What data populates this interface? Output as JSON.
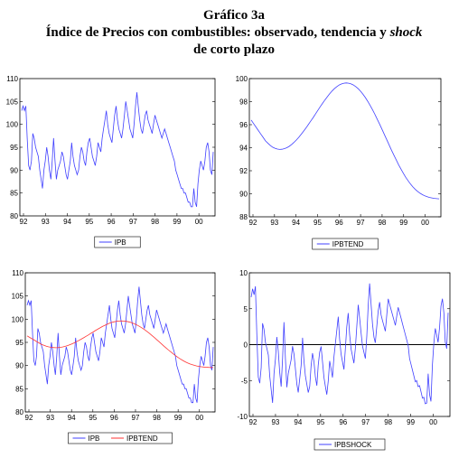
{
  "header": {
    "line1": "Gráfico 3a",
    "line2_main": "Índice de Precios con combustibles: observado, tendencia y ",
    "line2_italic": "shock",
    "line3": "de corto plazo"
  },
  "colors": {
    "ipb": "#4040ff",
    "trend": "#ff3333",
    "zero": "#000000"
  },
  "chart_data": [
    {
      "type": "line",
      "x_ticks": [
        "92",
        "93",
        "94",
        "95",
        "96",
        "97",
        "98",
        "99",
        "00"
      ],
      "ylim": [
        80,
        110
      ],
      "y_ticks": [
        80,
        85,
        90,
        95,
        100,
        105,
        110
      ],
      "grid": false,
      "legend_position": "bottom-center",
      "series": [
        {
          "name": "IPB",
          "color": "#4040ff",
          "values": [
            103,
            104,
            103,
            104,
            97,
            91,
            90,
            92,
            98,
            97,
            95,
            94,
            93,
            90,
            88,
            86,
            90,
            92,
            95,
            93,
            90,
            88,
            92,
            97,
            92,
            88,
            90,
            91,
            92,
            94,
            93,
            91,
            89,
            88,
            90,
            92,
            96,
            93,
            91,
            90,
            89,
            90,
            93,
            95,
            94,
            92,
            91,
            94,
            96,
            97,
            95,
            93,
            92,
            91,
            93,
            96,
            95,
            94,
            97,
            99,
            101,
            103,
            100,
            98,
            97,
            96,
            99,
            102,
            104,
            101,
            99,
            98,
            97,
            99,
            102,
            105,
            103,
            101,
            99,
            98,
            97,
            100,
            104,
            107,
            104,
            101,
            99,
            98,
            100,
            102,
            103,
            101,
            100,
            99,
            98,
            100,
            102,
            101,
            100,
            99,
            98,
            97,
            98,
            99,
            98,
            97,
            96,
            95,
            94,
            93,
            92,
            90,
            89,
            88,
            87,
            86,
            86,
            85,
            85,
            84,
            83,
            83,
            82,
            82,
            86,
            83,
            82,
            87,
            90,
            92,
            91,
            90,
            92,
            95,
            96,
            94,
            90,
            89,
            94
          ]
        }
      ]
    },
    {
      "type": "line",
      "x_ticks": [
        "92",
        "93",
        "94",
        "95",
        "96",
        "97",
        "98",
        "99",
        "00"
      ],
      "ylim": [
        88,
        100
      ],
      "y_ticks": [
        88,
        90,
        92,
        94,
        96,
        98,
        100
      ],
      "grid": false,
      "legend_position": "bottom-center",
      "series": [
        {
          "name": "IPBTEND",
          "color": "#4040ff",
          "values": [
            96.4,
            96.1,
            95.8,
            95.5,
            95.2,
            94.9,
            94.6,
            94.4,
            94.2,
            94.05,
            93.95,
            93.88,
            93.85,
            93.87,
            93.92,
            94.0,
            94.12,
            94.28,
            94.46,
            94.67,
            94.9,
            95.15,
            95.42,
            95.7,
            96.0,
            96.3,
            96.6,
            96.92,
            97.23,
            97.55,
            97.85,
            98.14,
            98.42,
            98.68,
            98.92,
            99.13,
            99.3,
            99.44,
            99.54,
            99.6,
            99.62,
            99.6,
            99.54,
            99.44,
            99.3,
            99.12,
            98.9,
            98.64,
            98.35,
            98.03,
            97.68,
            97.3,
            96.9,
            96.48,
            96.05,
            95.6,
            95.15,
            94.69,
            94.24,
            93.79,
            93.35,
            92.93,
            92.52,
            92.13,
            91.77,
            91.43,
            91.12,
            90.84,
            90.6,
            90.38,
            90.2,
            90.05,
            89.92,
            89.82,
            89.74,
            89.68,
            89.64,
            89.6,
            89.58,
            89.56
          ]
        }
      ]
    },
    {
      "type": "line",
      "x_ticks": [
        "92",
        "93",
        "94",
        "95",
        "96",
        "97",
        "98",
        "99",
        "00"
      ],
      "ylim": [
        80,
        110
      ],
      "y_ticks": [
        80,
        85,
        90,
        95,
        100,
        105,
        110
      ],
      "grid": false,
      "legend_position": "bottom-center",
      "series": [
        {
          "name": "IPB",
          "color": "#4040ff",
          "ref": "chart_data.0.series.0"
        },
        {
          "name": "IPBTEND",
          "color": "#ff3333",
          "ref": "chart_data.1.series.0"
        }
      ]
    },
    {
      "type": "line",
      "x_ticks": [
        "92",
        "93",
        "94",
        "95",
        "96",
        "97",
        "98",
        "99",
        "00"
      ],
      "ylim": [
        -10,
        10
      ],
      "y_ticks": [
        -10,
        -5,
        0,
        5,
        10
      ],
      "grid": false,
      "legend_position": "bottom-center",
      "zero_line": true,
      "series": [
        {
          "name": "IPBSHOCK",
          "color": "#4040ff",
          "derived": "IPB - IPBTEND"
        }
      ]
    }
  ]
}
